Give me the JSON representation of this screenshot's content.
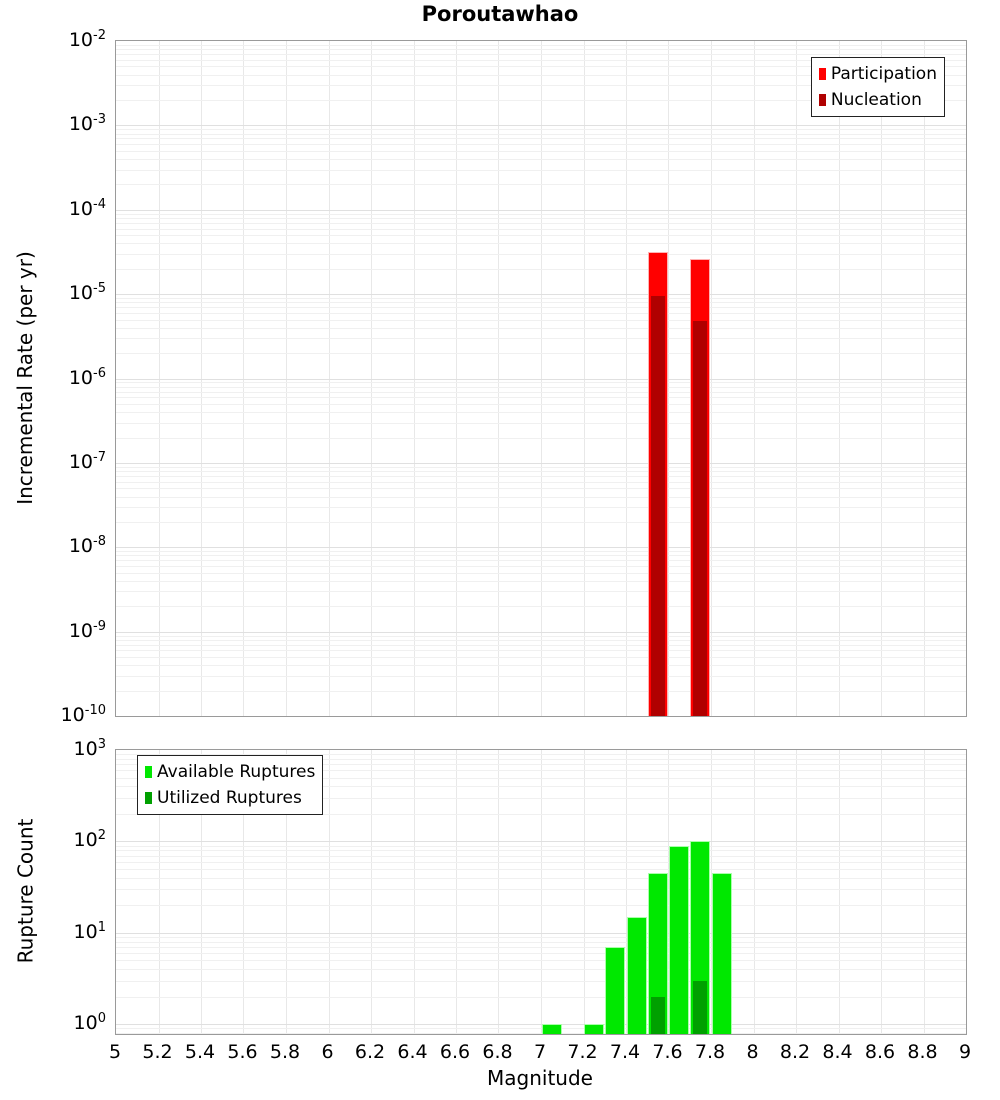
{
  "title": "Poroutawhao",
  "colors": {
    "participation": "#ff0000",
    "nucleation": "#b00000",
    "available": "#00e800",
    "utilized": "#00a000",
    "grid_minor": "#f0f0f0",
    "grid_major": "#e0e0e0",
    "frame": "#9a9a9a",
    "background": "#ffffff"
  },
  "chart_data": [
    {
      "type": "bar",
      "title": "Poroutawhao",
      "ylabel": "Incremental Rate (per yr)",
      "yscale": "log",
      "ylim": [
        1e-10,
        0.01
      ],
      "xlim": [
        5,
        9
      ],
      "grid": true,
      "bar_bin_width": 0.1,
      "show_x_labels": false,
      "yticks_exponents": [
        -2,
        -3,
        -4,
        -5,
        -6,
        -7,
        -8,
        -9,
        -10
      ],
      "xticks": {
        "values": [
          5,
          5.2,
          5.4,
          5.6,
          5.8,
          6,
          6.2,
          6.4,
          6.6,
          6.8,
          7,
          7.2,
          7.4,
          7.6,
          7.8,
          8,
          8.2,
          8.4,
          8.6,
          8.8,
          9
        ],
        "labels": [
          "5",
          "5.2",
          "5.4",
          "5.6",
          "5.8",
          "6",
          "6.2",
          "6.4",
          "6.6",
          "6.8",
          "7",
          "7.2",
          "7.4",
          "7.6",
          "7.8",
          "8",
          "8.2",
          "8.4",
          "8.6",
          "8.8",
          "9"
        ]
      },
      "legend": {
        "position": "top-right",
        "items": [
          {
            "label": "Participation",
            "color": "#ff0000"
          },
          {
            "label": "Nucleation",
            "color": "#b00000"
          }
        ]
      },
      "series": [
        {
          "name": "Participation",
          "color": "#ff0000",
          "edge": "#ffb3b3",
          "overlay": false,
          "x": [
            7.55,
            7.75
          ],
          "values": [
            3.2e-05,
            2.6e-05
          ]
        },
        {
          "name": "Nucleation",
          "color": "#b00000",
          "edge": "#d98c8c",
          "overlay": true,
          "x": [
            7.55,
            7.75
          ],
          "values": [
            9.5e-06,
            4.8e-06
          ]
        }
      ]
    },
    {
      "type": "bar",
      "ylabel": "Rupture Count",
      "xlabel": "Magnitude",
      "yscale": "log",
      "ylim": [
        0.78,
        1000
      ],
      "xlim": [
        5,
        9
      ],
      "grid": true,
      "bar_bin_width": 0.1,
      "show_x_labels": true,
      "yticks_exponents": [
        3,
        2,
        1,
        0
      ],
      "xticks": {
        "values": [
          5,
          5.2,
          5.4,
          5.6,
          5.8,
          6,
          6.2,
          6.4,
          6.6,
          6.8,
          7,
          7.2,
          7.4,
          7.6,
          7.8,
          8,
          8.2,
          8.4,
          8.6,
          8.8,
          9
        ],
        "labels": [
          "5",
          "5.2",
          "5.4",
          "5.6",
          "5.8",
          "6",
          "6.2",
          "6.4",
          "6.6",
          "6.8",
          "7",
          "7.2",
          "7.4",
          "7.6",
          "7.8",
          "8",
          "8.2",
          "8.4",
          "8.6",
          "8.8",
          "9"
        ]
      },
      "legend": {
        "position": "top-left",
        "items": [
          {
            "label": "Available Ruptures",
            "color": "#00e800"
          },
          {
            "label": "Utilized Ruptures",
            "color": "#00a000"
          }
        ]
      },
      "series": [
        {
          "name": "Available Ruptures",
          "color": "#00e800",
          "edge": "#aaffaa",
          "overlay": false,
          "x": [
            7.05,
            7.25,
            7.35,
            7.45,
            7.55,
            7.65,
            7.75,
            7.85
          ],
          "values": [
            1,
            1,
            7,
            15,
            45,
            90,
            100,
            45
          ]
        },
        {
          "name": "Utilized Ruptures",
          "color": "#00a000",
          "edge": "#00a000",
          "overlay": true,
          "x": [
            7.55,
            7.75
          ],
          "values": [
            2,
            3
          ]
        }
      ]
    }
  ]
}
